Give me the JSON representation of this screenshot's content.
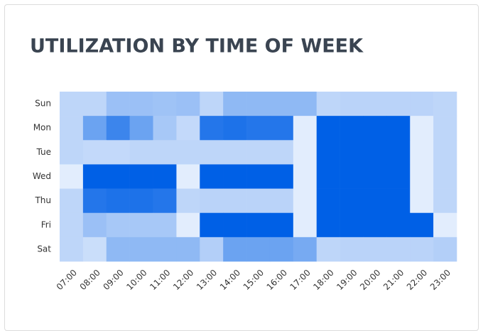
{
  "chart_data": {
    "type": "heatmap",
    "title": "UTILIZATION BY TIME OF WEEK",
    "categories": [
      "07:00",
      "08:00",
      "09:00",
      "10:00",
      "11:00",
      "12:00",
      "13:00",
      "14:00",
      "15:00",
      "16:00",
      "17:00",
      "18:00",
      "19:00",
      "20:00",
      "21:00",
      "22:00",
      "23:00"
    ],
    "rows": [
      "Sun",
      "Mon",
      "Tue",
      "Wed",
      "Thu",
      "Fri",
      "Sat"
    ],
    "values": [
      [
        20,
        20,
        35,
        35,
        33,
        35,
        20,
        40,
        40,
        40,
        40,
        20,
        22,
        22,
        22,
        22,
        20
      ],
      [
        20,
        55,
        75,
        55,
        30,
        18,
        85,
        88,
        85,
        85,
        5,
        100,
        100,
        100,
        100,
        5,
        20
      ],
      [
        20,
        18,
        18,
        20,
        20,
        20,
        20,
        20,
        20,
        20,
        5,
        100,
        100,
        100,
        100,
        5,
        20
      ],
      [
        5,
        100,
        100,
        100,
        100,
        5,
        100,
        100,
        100,
        100,
        5,
        100,
        100,
        100,
        100,
        5,
        20
      ],
      [
        20,
        85,
        88,
        88,
        85,
        20,
        22,
        22,
        22,
        22,
        5,
        100,
        100,
        100,
        100,
        5,
        20
      ],
      [
        20,
        35,
        30,
        30,
        30,
        5,
        100,
        100,
        100,
        100,
        5,
        100,
        100,
        100,
        100,
        100,
        5
      ],
      [
        20,
        15,
        40,
        40,
        40,
        40,
        25,
        55,
        55,
        55,
        50,
        20,
        22,
        22,
        22,
        22,
        25
      ]
    ],
    "zlim": [
      0,
      100
    ],
    "color_range": [
      "#eef4fe",
      "#0060e6"
    ]
  }
}
